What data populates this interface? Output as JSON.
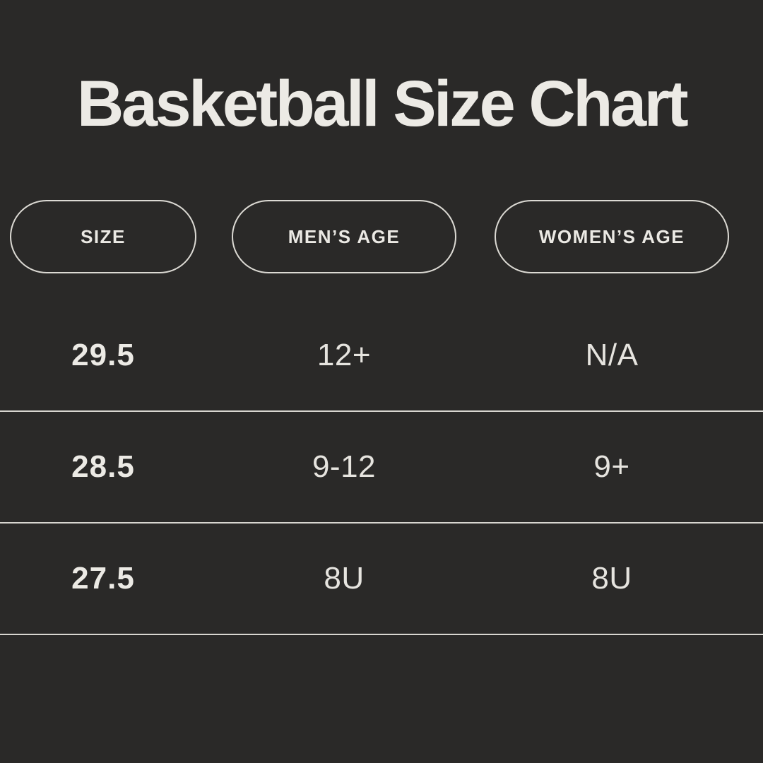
{
  "page": {
    "background_color": "#2a2928",
    "text_color": "#e9e7e2",
    "divider_color": "#d8d6d0",
    "pill_border_color": "#dcdad4"
  },
  "title": "Basketball Size Chart",
  "table": {
    "columns": [
      {
        "id": "size",
        "label": "SIZE"
      },
      {
        "id": "mens_age",
        "label": "MEN’S AGE"
      },
      {
        "id": "womens_age",
        "label": "WOMEN’S AGE"
      }
    ],
    "rows": [
      {
        "size": "29.5",
        "mens_age": "12+",
        "womens_age": "N/A"
      },
      {
        "size": "28.5",
        "mens_age": "9-12",
        "womens_age": "9+"
      },
      {
        "size": "27.5",
        "mens_age": "8U",
        "womens_age": "8U"
      }
    ]
  },
  "chart_data": {
    "type": "table",
    "title": "Basketball Size Chart",
    "categories": [
      "SIZE",
      "MEN’S AGE",
      "WOMEN’S AGE"
    ],
    "series": [
      {
        "name": "29.5",
        "values": [
          "12+",
          "N/A"
        ]
      },
      {
        "name": "28.5",
        "values": [
          "9-12",
          "9+"
        ]
      },
      {
        "name": "27.5",
        "values": [
          "8U",
          "8U"
        ]
      }
    ]
  }
}
